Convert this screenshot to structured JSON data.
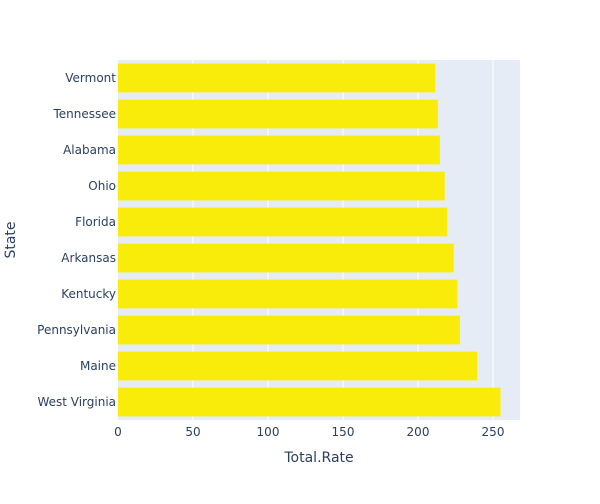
{
  "colors": {
    "bar": "#f9ec0a",
    "plot_bg": "#e5ecf6",
    "grid": "#ffffff",
    "text": "#2a3f5f"
  },
  "chart_data": {
    "type": "bar",
    "orientation": "horizontal",
    "title": "",
    "xlabel": "Total.Rate",
    "ylabel": "State",
    "xlim": [
      0,
      268
    ],
    "xticks": [
      0,
      50,
      100,
      150,
      200,
      250
    ],
    "grid": true,
    "categories": [
      "Vermont",
      "Tennessee",
      "Alabama",
      "Ohio",
      "Florida",
      "Arkansas",
      "Kentucky",
      "Pennsylvania",
      "Maine",
      "West Virginia"
    ],
    "values": [
      211.5,
      213.2,
      214.6,
      217.8,
      219.5,
      223.8,
      226.3,
      228.0,
      239.5,
      255.0
    ]
  }
}
